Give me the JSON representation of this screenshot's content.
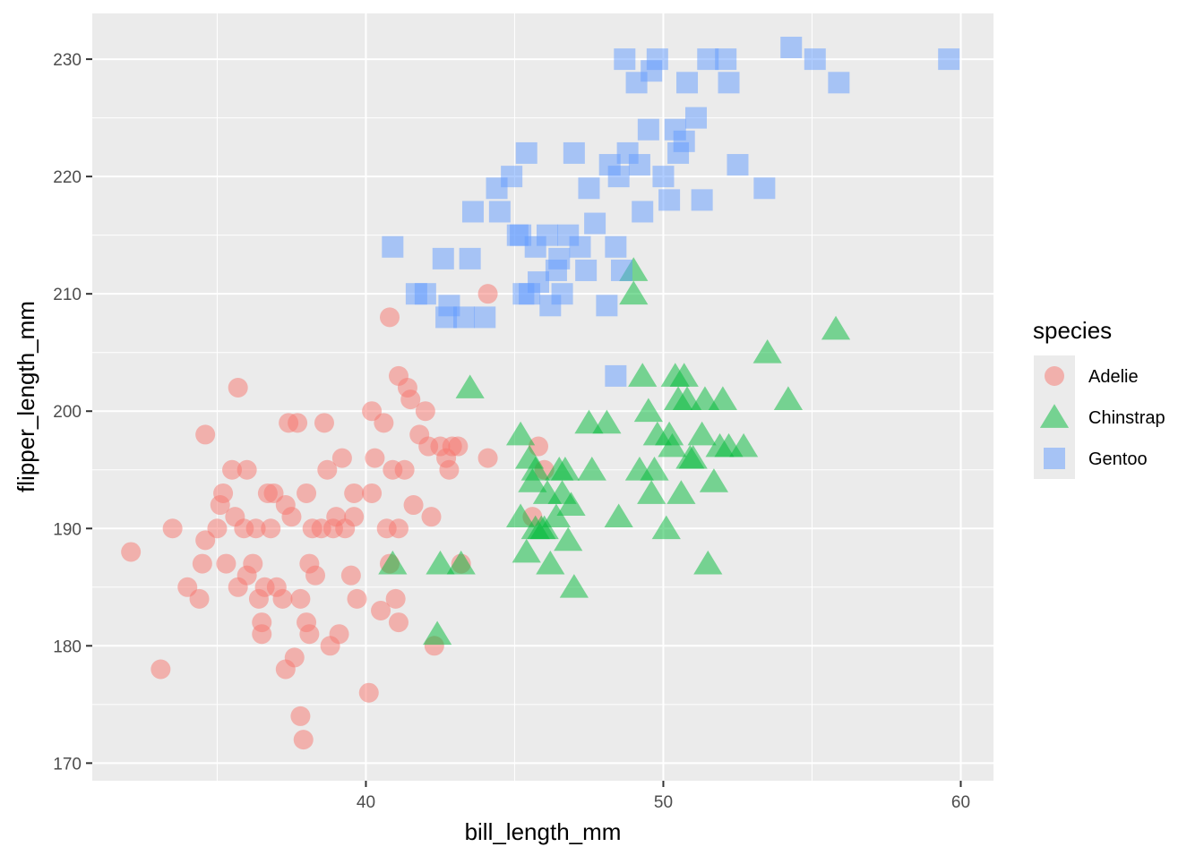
{
  "chart_data": {
    "type": "scatter",
    "title": "",
    "xlabel": "bill_length_mm",
    "ylabel": "flipper_length_mm",
    "xlim": [
      30.8,
      61.1
    ],
    "ylim": [
      168.5,
      233.9
    ],
    "x_ticks": [
      40,
      50,
      60
    ],
    "y_ticks": [
      170,
      180,
      190,
      200,
      210,
      220,
      230
    ],
    "grid": true,
    "legend_position": "right",
    "legend_title": "species",
    "series": [
      {
        "name": "Adelie",
        "shape": "circle",
        "color": "#F8766D",
        "points": [
          [
            32.1,
            188
          ],
          [
            33.1,
            178
          ],
          [
            33.5,
            190
          ],
          [
            34.0,
            185
          ],
          [
            34.4,
            184
          ],
          [
            34.5,
            187
          ],
          [
            34.6,
            189
          ],
          [
            34.6,
            198
          ],
          [
            35.0,
            190
          ],
          [
            35.1,
            192
          ],
          [
            35.2,
            193
          ],
          [
            35.3,
            187
          ],
          [
            35.5,
            195
          ],
          [
            35.6,
            191
          ],
          [
            35.7,
            202
          ],
          [
            35.7,
            185
          ],
          [
            35.9,
            190
          ],
          [
            36.0,
            186
          ],
          [
            36.0,
            195
          ],
          [
            36.2,
            187
          ],
          [
            36.3,
            190
          ],
          [
            36.4,
            184
          ],
          [
            36.5,
            182
          ],
          [
            36.5,
            181
          ],
          [
            36.6,
            185
          ],
          [
            36.7,
            193
          ],
          [
            36.8,
            190
          ],
          [
            36.9,
            193
          ],
          [
            37.0,
            185
          ],
          [
            37.2,
            184
          ],
          [
            37.3,
            192
          ],
          [
            37.3,
            178
          ],
          [
            37.4,
            199
          ],
          [
            37.5,
            191
          ],
          [
            37.6,
            179
          ],
          [
            37.7,
            199
          ],
          [
            37.8,
            174
          ],
          [
            37.8,
            184
          ],
          [
            37.9,
            172
          ],
          [
            38.0,
            193
          ],
          [
            38.0,
            182
          ],
          [
            38.1,
            181
          ],
          [
            38.1,
            187
          ],
          [
            38.2,
            190
          ],
          [
            38.3,
            186
          ],
          [
            38.5,
            190
          ],
          [
            38.6,
            199
          ],
          [
            38.7,
            195
          ],
          [
            38.8,
            180
          ],
          [
            38.9,
            190
          ],
          [
            39.0,
            191
          ],
          [
            39.1,
            181
          ],
          [
            39.2,
            196
          ],
          [
            39.3,
            190
          ],
          [
            39.5,
            186
          ],
          [
            39.6,
            193
          ],
          [
            39.6,
            191
          ],
          [
            39.7,
            184
          ],
          [
            40.1,
            176
          ],
          [
            40.2,
            200
          ],
          [
            40.2,
            193
          ],
          [
            40.3,
            196
          ],
          [
            40.5,
            183
          ],
          [
            40.6,
            199
          ],
          [
            40.7,
            190
          ],
          [
            40.8,
            187
          ],
          [
            40.8,
            208
          ],
          [
            40.9,
            195
          ],
          [
            41.0,
            184
          ],
          [
            41.1,
            190
          ],
          [
            41.1,
            203
          ],
          [
            41.1,
            182
          ],
          [
            41.3,
            195
          ],
          [
            41.4,
            202
          ],
          [
            41.5,
            201
          ],
          [
            41.6,
            192
          ],
          [
            41.8,
            198
          ],
          [
            42.0,
            200
          ],
          [
            42.1,
            197
          ],
          [
            42.2,
            191
          ],
          [
            42.3,
            180
          ],
          [
            42.5,
            197
          ],
          [
            42.7,
            196
          ],
          [
            42.8,
            195
          ],
          [
            42.9,
            197
          ],
          [
            43.1,
            197
          ],
          [
            43.2,
            187
          ],
          [
            44.1,
            196
          ],
          [
            44.1,
            210
          ],
          [
            45.6,
            191
          ],
          [
            45.8,
            197
          ],
          [
            46.0,
            195
          ]
        ]
      },
      {
        "name": "Chinstrap",
        "shape": "triangle",
        "color": "#00BA38",
        "points": [
          [
            40.9,
            187
          ],
          [
            42.4,
            181
          ],
          [
            42.5,
            187
          ],
          [
            43.2,
            187
          ],
          [
            43.5,
            202
          ],
          [
            45.2,
            198
          ],
          [
            45.2,
            191
          ],
          [
            45.4,
            188
          ],
          [
            45.5,
            196
          ],
          [
            45.6,
            194
          ],
          [
            45.7,
            195
          ],
          [
            45.7,
            190
          ],
          [
            45.9,
            190
          ],
          [
            46.0,
            190
          ],
          [
            46.1,
            193
          ],
          [
            46.2,
            187
          ],
          [
            46.4,
            191
          ],
          [
            46.5,
            195
          ],
          [
            46.6,
            193
          ],
          [
            46.7,
            195
          ],
          [
            46.8,
            189
          ],
          [
            46.9,
            192
          ],
          [
            47.0,
            185
          ],
          [
            47.5,
            199
          ],
          [
            47.6,
            195
          ],
          [
            48.1,
            199
          ],
          [
            48.5,
            191
          ],
          [
            49.0,
            210
          ],
          [
            49.0,
            212
          ],
          [
            49.2,
            195
          ],
          [
            49.3,
            203
          ],
          [
            49.5,
            200
          ],
          [
            49.6,
            193
          ],
          [
            49.7,
            195
          ],
          [
            49.8,
            198
          ],
          [
            50.1,
            190
          ],
          [
            50.2,
            198
          ],
          [
            50.3,
            197
          ],
          [
            50.4,
            203
          ],
          [
            50.5,
            201
          ],
          [
            50.6,
            193
          ],
          [
            50.7,
            203
          ],
          [
            50.8,
            201
          ],
          [
            50.9,
            196
          ],
          [
            51.0,
            196
          ],
          [
            51.3,
            198
          ],
          [
            51.4,
            201
          ],
          [
            51.5,
            187
          ],
          [
            51.7,
            194
          ],
          [
            51.9,
            197
          ],
          [
            52.0,
            201
          ],
          [
            52.2,
            197
          ],
          [
            52.7,
            197
          ],
          [
            53.5,
            205
          ],
          [
            54.2,
            201
          ],
          [
            55.8,
            207
          ]
        ]
      },
      {
        "name": "Gentoo",
        "shape": "square",
        "color": "#619CFF",
        "points": [
          [
            40.9,
            214
          ],
          [
            41.7,
            210
          ],
          [
            42.0,
            210
          ],
          [
            42.6,
            213
          ],
          [
            42.7,
            208
          ],
          [
            42.8,
            209
          ],
          [
            43.3,
            208
          ],
          [
            43.5,
            213
          ],
          [
            43.6,
            217
          ],
          [
            44.0,
            208
          ],
          [
            44.4,
            219
          ],
          [
            44.5,
            217
          ],
          [
            44.9,
            220
          ],
          [
            45.1,
            215
          ],
          [
            45.2,
            215
          ],
          [
            45.3,
            210
          ],
          [
            45.4,
            222
          ],
          [
            45.5,
            210
          ],
          [
            45.7,
            214
          ],
          [
            45.8,
            211
          ],
          [
            46.1,
            215
          ],
          [
            46.2,
            209
          ],
          [
            46.4,
            212
          ],
          [
            46.5,
            213
          ],
          [
            46.6,
            210
          ],
          [
            46.8,
            215
          ],
          [
            47.0,
            222
          ],
          [
            47.2,
            214
          ],
          [
            47.4,
            212
          ],
          [
            47.5,
            219
          ],
          [
            47.7,
            216
          ],
          [
            48.1,
            209
          ],
          [
            48.2,
            221
          ],
          [
            48.4,
            214
          ],
          [
            48.5,
            220
          ],
          [
            48.6,
            212
          ],
          [
            48.7,
            230
          ],
          [
            48.8,
            222
          ],
          [
            49.1,
            228
          ],
          [
            49.2,
            221
          ],
          [
            49.3,
            217
          ],
          [
            49.5,
            224
          ],
          [
            49.6,
            229
          ],
          [
            49.8,
            230
          ],
          [
            50.0,
            220
          ],
          [
            50.2,
            218
          ],
          [
            50.4,
            224
          ],
          [
            50.5,
            222
          ],
          [
            50.7,
            223
          ],
          [
            50.8,
            228
          ],
          [
            51.1,
            225
          ],
          [
            51.3,
            218
          ],
          [
            51.5,
            230
          ],
          [
            52.1,
            230
          ],
          [
            52.2,
            228
          ],
          [
            52.5,
            221
          ],
          [
            53.4,
            219
          ],
          [
            54.3,
            231
          ],
          [
            55.1,
            230
          ],
          [
            55.9,
            228
          ],
          [
            59.6,
            230
          ],
          [
            48.4,
            203
          ]
        ]
      }
    ]
  }
}
